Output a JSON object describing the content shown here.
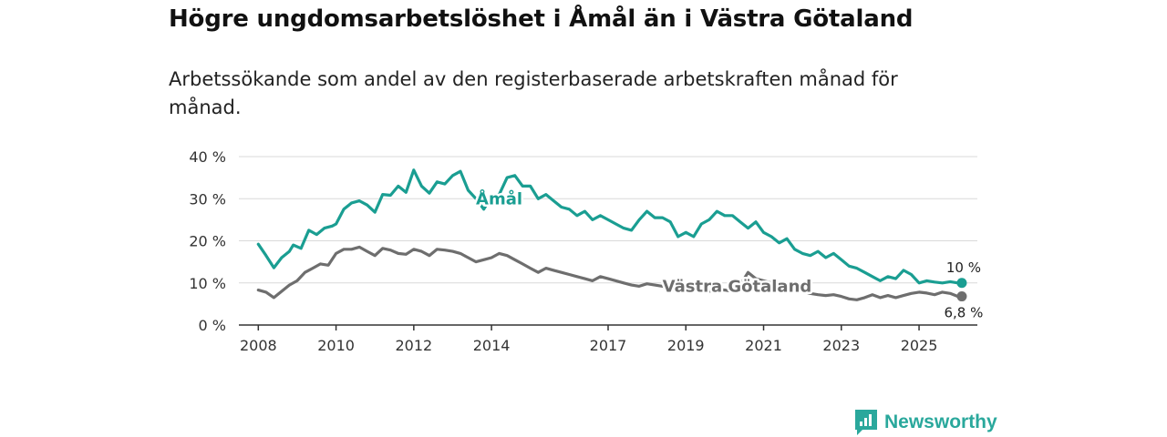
{
  "header": {
    "title": "Högre ungdomsarbetslöshet i Åmål än i Västra Götaland",
    "subtitle": "Arbetssökande som andel av den registerbaserade arbetskraften månad för månad."
  },
  "brand": {
    "name": "Newsworthy",
    "icon": "newsworthy-logo-icon",
    "color": "#2aa89c"
  },
  "chart_data": {
    "type": "line",
    "title": "Högre ungdomsarbetslöshet i Åmål än i Västra Götaland",
    "subtitle": "Arbetssökande som andel av den registerbaserade arbetskraften månad för månad.",
    "xlabel": "",
    "ylabel": "",
    "xlim": [
      2007.5,
      2026.5
    ],
    "ylim": [
      0,
      40
    ],
    "grid": true,
    "x_ticks": [
      2008,
      2010,
      2012,
      2014,
      2017,
      2019,
      2021,
      2023,
      2025
    ],
    "y_ticks": [
      0,
      10,
      20,
      30,
      40
    ],
    "y_tick_labels": [
      "0 %",
      "10 %",
      "20 %",
      "30 %",
      "40 %"
    ],
    "series": [
      {
        "name": "Åmål",
        "color": "#1a9e92",
        "end_label": "10 %",
        "points": [
          [
            2008.0,
            19.2
          ],
          [
            2008.2,
            16.5
          ],
          [
            2008.4,
            13.6
          ],
          [
            2008.6,
            16.0
          ],
          [
            2008.8,
            17.5
          ],
          [
            2008.9,
            19.0
          ],
          [
            2009.1,
            18.2
          ],
          [
            2009.3,
            22.5
          ],
          [
            2009.5,
            21.5
          ],
          [
            2009.7,
            23.0
          ],
          [
            2009.9,
            23.5
          ],
          [
            2010.0,
            24.0
          ],
          [
            2010.2,
            27.5
          ],
          [
            2010.4,
            29.0
          ],
          [
            2010.6,
            29.5
          ],
          [
            2010.8,
            28.5
          ],
          [
            2011.0,
            26.8
          ],
          [
            2011.2,
            31.0
          ],
          [
            2011.4,
            30.8
          ],
          [
            2011.6,
            33.0
          ],
          [
            2011.8,
            31.5
          ],
          [
            2012.0,
            36.8
          ],
          [
            2012.2,
            33.0
          ],
          [
            2012.4,
            31.3
          ],
          [
            2012.6,
            34.0
          ],
          [
            2012.8,
            33.5
          ],
          [
            2013.0,
            35.5
          ],
          [
            2013.2,
            36.5
          ],
          [
            2013.4,
            32.0
          ],
          [
            2013.6,
            30.0
          ],
          [
            2013.8,
            27.5
          ],
          [
            2014.0,
            30.5
          ],
          [
            2014.2,
            31.0
          ],
          [
            2014.4,
            35.0
          ],
          [
            2014.6,
            35.5
          ],
          [
            2014.8,
            33.0
          ],
          [
            2015.0,
            33.0
          ],
          [
            2015.2,
            30.0
          ],
          [
            2015.4,
            31.0
          ],
          [
            2015.6,
            29.5
          ],
          [
            2015.8,
            28.0
          ],
          [
            2016.0,
            27.5
          ],
          [
            2016.2,
            26.0
          ],
          [
            2016.4,
            27.0
          ],
          [
            2016.6,
            25.0
          ],
          [
            2016.8,
            26.0
          ],
          [
            2017.0,
            25.0
          ],
          [
            2017.2,
            24.0
          ],
          [
            2017.4,
            23.0
          ],
          [
            2017.6,
            22.5
          ],
          [
            2017.8,
            25.0
          ],
          [
            2018.0,
            27.0
          ],
          [
            2018.2,
            25.5
          ],
          [
            2018.4,
            25.5
          ],
          [
            2018.6,
            24.5
          ],
          [
            2018.8,
            21.0
          ],
          [
            2019.0,
            22.0
          ],
          [
            2019.2,
            21.0
          ],
          [
            2019.4,
            24.0
          ],
          [
            2019.6,
            25.0
          ],
          [
            2019.8,
            27.0
          ],
          [
            2020.0,
            26.0
          ],
          [
            2020.2,
            26.0
          ],
          [
            2020.4,
            24.5
          ],
          [
            2020.6,
            23.0
          ],
          [
            2020.8,
            24.5
          ],
          [
            2021.0,
            22.0
          ],
          [
            2021.2,
            21.0
          ],
          [
            2021.4,
            19.5
          ],
          [
            2021.6,
            20.5
          ],
          [
            2021.8,
            18.0
          ],
          [
            2022.0,
            17.0
          ],
          [
            2022.2,
            16.5
          ],
          [
            2022.4,
            17.5
          ],
          [
            2022.6,
            16.0
          ],
          [
            2022.8,
            17.0
          ],
          [
            2023.0,
            15.5
          ],
          [
            2023.2,
            14.0
          ],
          [
            2023.4,
            13.5
          ],
          [
            2023.6,
            12.5
          ],
          [
            2023.8,
            11.5
          ],
          [
            2024.0,
            10.5
          ],
          [
            2024.2,
            11.5
          ],
          [
            2024.4,
            11.0
          ],
          [
            2024.6,
            13.0
          ],
          [
            2024.8,
            12.0
          ],
          [
            2025.0,
            10.0
          ],
          [
            2025.2,
            10.5
          ],
          [
            2025.4,
            10.2
          ],
          [
            2025.6,
            10.0
          ],
          [
            2025.8,
            10.3
          ],
          [
            2026.0,
            10.0
          ],
          [
            2026.1,
            10.0
          ]
        ]
      },
      {
        "name": "Västra Götaland",
        "color": "#6e6e6e",
        "end_label": "6,8 %",
        "points": [
          [
            2008.0,
            8.3
          ],
          [
            2008.2,
            7.8
          ],
          [
            2008.4,
            6.5
          ],
          [
            2008.6,
            8.0
          ],
          [
            2008.8,
            9.5
          ],
          [
            2009.0,
            10.5
          ],
          [
            2009.2,
            12.5
          ],
          [
            2009.4,
            13.5
          ],
          [
            2009.6,
            14.5
          ],
          [
            2009.8,
            14.2
          ],
          [
            2010.0,
            17.0
          ],
          [
            2010.2,
            18.0
          ],
          [
            2010.4,
            18.0
          ],
          [
            2010.6,
            18.5
          ],
          [
            2010.8,
            17.5
          ],
          [
            2011.0,
            16.5
          ],
          [
            2011.2,
            18.2
          ],
          [
            2011.4,
            17.8
          ],
          [
            2011.6,
            17.0
          ],
          [
            2011.8,
            16.8
          ],
          [
            2012.0,
            18.0
          ],
          [
            2012.2,
            17.5
          ],
          [
            2012.4,
            16.5
          ],
          [
            2012.6,
            18.0
          ],
          [
            2012.8,
            17.8
          ],
          [
            2013.0,
            17.5
          ],
          [
            2013.2,
            17.0
          ],
          [
            2013.4,
            16.0
          ],
          [
            2013.6,
            15.0
          ],
          [
            2013.8,
            15.5
          ],
          [
            2014.0,
            16.0
          ],
          [
            2014.2,
            17.0
          ],
          [
            2014.4,
            16.5
          ],
          [
            2014.6,
            15.5
          ],
          [
            2014.8,
            14.5
          ],
          [
            2015.0,
            13.5
          ],
          [
            2015.2,
            12.5
          ],
          [
            2015.4,
            13.5
          ],
          [
            2015.6,
            13.0
          ],
          [
            2015.8,
            12.5
          ],
          [
            2016.0,
            12.0
          ],
          [
            2016.2,
            11.5
          ],
          [
            2016.4,
            11.0
          ],
          [
            2016.6,
            10.5
          ],
          [
            2016.8,
            11.5
          ],
          [
            2017.0,
            11.0
          ],
          [
            2017.2,
            10.5
          ],
          [
            2017.4,
            10.0
          ],
          [
            2017.6,
            9.5
          ],
          [
            2017.8,
            9.2
          ],
          [
            2018.0,
            9.8
          ],
          [
            2018.2,
            9.5
          ],
          [
            2018.4,
            9.2
          ],
          [
            2018.6,
            8.5
          ],
          [
            2018.8,
            8.0
          ],
          [
            2019.0,
            8.5
          ],
          [
            2019.2,
            8.2
          ],
          [
            2019.4,
            8.0
          ],
          [
            2019.6,
            8.0
          ],
          [
            2019.8,
            8.5
          ],
          [
            2020.0,
            8.3
          ],
          [
            2020.2,
            8.0
          ],
          [
            2020.4,
            9.5
          ],
          [
            2020.6,
            12.5
          ],
          [
            2020.8,
            11.0
          ],
          [
            2021.0,
            10.5
          ],
          [
            2021.2,
            10.0
          ],
          [
            2021.4,
            9.5
          ],
          [
            2021.6,
            9.2
          ],
          [
            2021.8,
            8.5
          ],
          [
            2022.0,
            8.0
          ],
          [
            2022.2,
            7.5
          ],
          [
            2022.4,
            7.2
          ],
          [
            2022.6,
            7.0
          ],
          [
            2022.8,
            7.2
          ],
          [
            2023.0,
            6.8
          ],
          [
            2023.2,
            6.2
          ],
          [
            2023.4,
            6.0
          ],
          [
            2023.6,
            6.5
          ],
          [
            2023.8,
            7.2
          ],
          [
            2024.0,
            6.5
          ],
          [
            2024.2,
            7.0
          ],
          [
            2024.4,
            6.5
          ],
          [
            2024.6,
            7.0
          ],
          [
            2024.8,
            7.5
          ],
          [
            2025.0,
            7.8
          ],
          [
            2025.2,
            7.6
          ],
          [
            2025.4,
            7.2
          ],
          [
            2025.6,
            7.8
          ],
          [
            2025.8,
            7.5
          ],
          [
            2026.0,
            6.8
          ],
          [
            2026.1,
            6.8
          ]
        ]
      }
    ],
    "annotations": [
      {
        "text": "Åmål",
        "series": "Åmål",
        "at_x": 2013.6
      },
      {
        "text": "Västra Götaland",
        "series": "Västra Götaland",
        "at_x": 2018.4
      }
    ]
  }
}
